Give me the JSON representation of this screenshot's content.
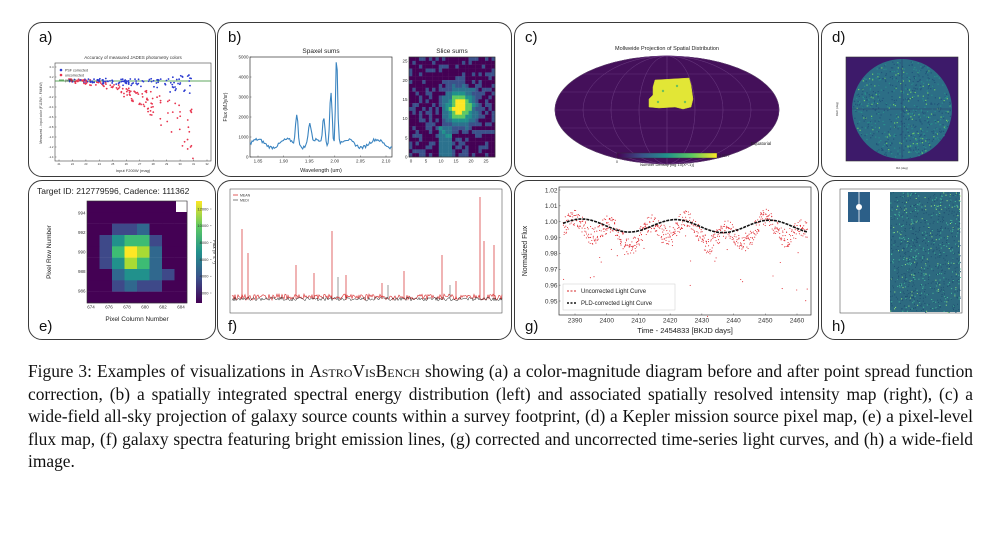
{
  "panels": {
    "a": {
      "label": "a)",
      "title": "Accuracy of measured JADES photometry colors",
      "legend": [
        "PSF corrected",
        "uncorrected",
        "perfect"
      ],
      "xlabel": "Input F200W (mag)",
      "ylabel": "Measured - input color (F115W - F444W)",
      "xticks": [
        "21",
        "22",
        "23",
        "24",
        "25",
        "26",
        "27",
        "28",
        "29",
        "30",
        "31",
        "32"
      ],
      "yticks": [
        "0.4",
        "0.2",
        "0.0",
        "-0.2",
        "-0.4",
        "-0.6",
        "-0.8",
        "-1.0",
        "-1.2",
        "-1.4"
      ]
    },
    "b": {
      "label": "b)",
      "left_title": "Spaxel sums",
      "right_title": "Slice sums",
      "xlabel": "Wavelength (um)",
      "ylabel": "Flux (MJy/sr)",
      "xticks": [
        "1.85",
        "1.90",
        "1.95",
        "2.00",
        "2.05",
        "2.10"
      ],
      "yticks": [
        "5000",
        "4000",
        "3000",
        "2000",
        "1000",
        "0"
      ],
      "img_xticks": [
        "0",
        "5",
        "10",
        "15",
        "20",
        "25"
      ],
      "img_yticks": [
        "25",
        "20",
        "15",
        "10",
        "5",
        "0"
      ]
    },
    "c": {
      "label": "c)",
      "title": "Mollweide Projection of Spatial Distribution",
      "coord_label": "Equatorial",
      "colorbar_label": "Number Density  [log 10(X^-1)]",
      "colorbar_max": "2.0277",
      "colorbar_min": "0"
    },
    "d": {
      "label": "d)",
      "ylabel": "DEC (deg)",
      "xlabel": "RA (deg)"
    },
    "e": {
      "label": "e)",
      "title": "Target ID: 212779596, Cadence: 111362",
      "xlabel": "Pixel Column Number",
      "ylabel": "Pixel Row Number",
      "xticks": [
        "674",
        "676",
        "678",
        "680",
        "682",
        "684"
      ],
      "yticks": [
        "994",
        "992",
        "990",
        "988",
        "986"
      ],
      "cbar_ticks": [
        "12000",
        "10000",
        "8000",
        "6000",
        "4000",
        "2000"
      ],
      "cbar_label": "Flux (e⁻s⁻¹)"
    },
    "f": {
      "label": "f)",
      "legend": [
        "MEAN",
        "MEDI"
      ]
    },
    "g": {
      "label": "g)",
      "xlabel": "Time - 2454833 [BKJD days]",
      "ylabel": "Normalized Flux",
      "xticks": [
        "2390",
        "2400",
        "2410",
        "2420",
        "2430",
        "2440",
        "2450",
        "2460"
      ],
      "yticks": [
        "1.02",
        "1.01",
        "1.00",
        "0.99",
        "0.98",
        "0.97",
        "0.96",
        "0.95"
      ],
      "legend": [
        "Uncorrected Light Curve",
        "PLD-corrected Light Curve"
      ]
    },
    "h": {
      "label": "h)"
    }
  },
  "caption": {
    "prefix": "Figure 3: Examples of visualizations in ",
    "bench": "AstroVisBench",
    "body": " showing (a) a color-magnitude diagram before and after point spread function correction, (b) a spatially integrated spectral energy distribution (left) and associated spatially resolved intensity map (right), (c) a wide-field all-sky projection of galaxy source counts within a survey footprint, (d) a Kepler mission source pixel map, (e) a pixel-level flux map, (f) galaxy spectra featuring bright emission lines, (g) corrected and uncorrected time-series light curves, and (h) a wide-field image."
  }
}
